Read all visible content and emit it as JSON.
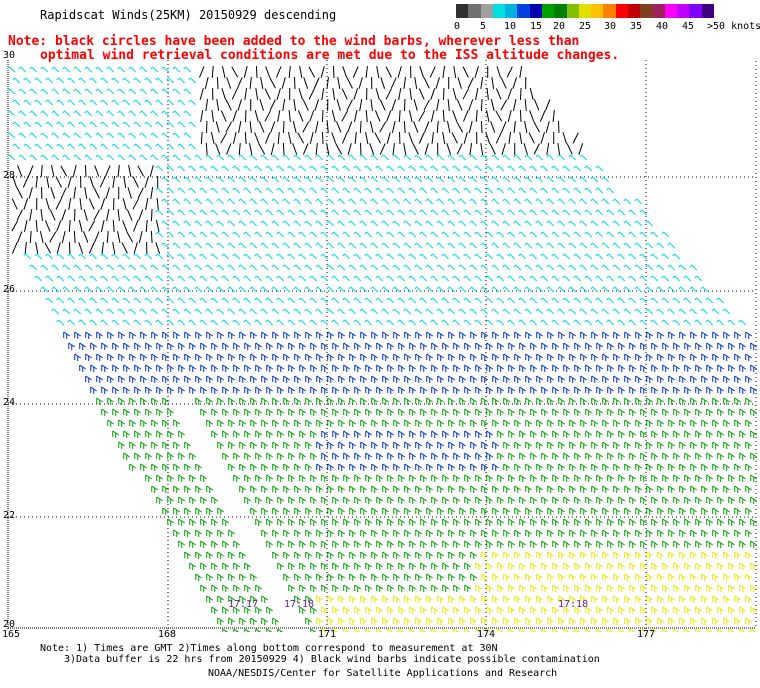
{
  "title": "Rapidscat Winds(25KM) 20150929 descending",
  "note": {
    "line1": "Note: black circles have been added to the wind barbs, wherever less than",
    "line2": "optimal wind retrieval conditions are met due to the ISS altitude changes."
  },
  "legend": {
    "labels": [
      "0",
      "5",
      "10",
      "15",
      "20",
      "25",
      "30",
      "35",
      "40",
      "45",
      ">50 knots"
    ],
    "colors": [
      "#303030",
      "#707070",
      "#a0a0a0",
      "#00e0e0",
      "#00b0e0",
      "#0040e0",
      "#0000b0",
      "#00a000",
      "#008000",
      "#80c000",
      "#e0e000",
      "#ffc000",
      "#ff8000",
      "#ff0000",
      "#c00000",
      "#804020",
      "#a02060",
      "#ff00ff",
      "#c000ff",
      "#8000ff",
      "#400080"
    ],
    "unit": "knots"
  },
  "axes": {
    "lat_labels": [
      "30",
      "28",
      "26",
      "24",
      "22",
      "20"
    ],
    "lon_labels": [
      "165",
      "168",
      "171",
      "174",
      "177"
    ]
  },
  "time_labels": [
    "17:17",
    "17:18",
    "17:18"
  ],
  "footnotes": {
    "line1": "Note: 1) Times are GMT 2)Times along bottom correspond to measurement at 30N",
    "line2": "3)Data buffer is 22 hrs from 20150929 4) Black wind barbs indicate possible contamination",
    "line3": "NOAA/NESDIS/Center for Satellite Applications and Research"
  },
  "barb_colors": {
    "calm": "#000000",
    "light": "#00d8f0",
    "moderate": "#0030e0",
    "fresh": "#00a000",
    "strong": "#e8e800"
  }
}
